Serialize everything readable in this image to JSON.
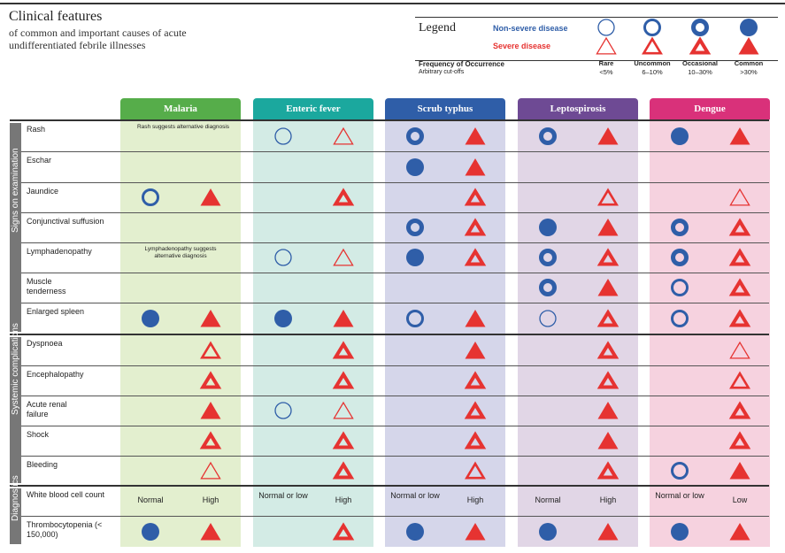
{
  "title": "Clinical features",
  "subtitle": "of common and important causes of acute undifferentiated febrile illnesses",
  "legend": {
    "title": "Legend",
    "non_severe": "Non-severe disease",
    "severe": "Severe disease",
    "freq_title": "Frequency of Occurrence",
    "freq_sub": "Arbitrary cut-offs",
    "levels": [
      {
        "name": "Rare",
        "range": "<5%"
      },
      {
        "name": "Uncommon",
        "range": "6–10%"
      },
      {
        "name": "Occasional",
        "range": "10–30%"
      },
      {
        "name": "Common",
        "range": ">30%"
      }
    ]
  },
  "colors": {
    "non_severe": "#2f5ea8",
    "severe": "#e63331"
  },
  "diseases": [
    {
      "name": "Malaria",
      "header_color": "#56ad4a",
      "band_color": "#e3efcf"
    },
    {
      "name": "Enteric fever",
      "header_color": "#1ba89e",
      "band_color": "#d3ebe5"
    },
    {
      "name": "Scrub typhus",
      "header_color": "#2f5ea8",
      "band_color": "#d5d6ea"
    },
    {
      "name": "Leptospirosis",
      "header_color": "#6e4a94",
      "band_color": "#e1d6e6"
    },
    {
      "name": "Dengue",
      "header_color": "#d9317a",
      "band_color": "#f6d2df"
    }
  ],
  "sections": [
    {
      "name": "Signs on examination"
    },
    {
      "name": "Systemic complications"
    },
    {
      "name": "Diagnostics"
    }
  ],
  "rows": [
    {
      "label": "Rash",
      "section": 0,
      "cells": [
        [
          "note",
          "Rash suggests alternative diagnosis"
        ],
        [
          1,
          1
        ],
        [
          3,
          4
        ],
        [
          3,
          4
        ],
        [
          4,
          4
        ]
      ]
    },
    {
      "label": "Eschar",
      "section": 0,
      "cells": [
        [
          0,
          0
        ],
        [
          0,
          0
        ],
        [
          4,
          4
        ],
        [
          0,
          0
        ],
        [
          0,
          0
        ]
      ]
    },
    {
      "label": "Jaundice",
      "section": 0,
      "cells": [
        [
          2,
          4
        ],
        [
          0,
          3
        ],
        [
          0,
          3
        ],
        [
          0,
          2
        ],
        [
          0,
          1
        ]
      ]
    },
    {
      "label": "Conjunctival suffusion",
      "section": 0,
      "cells": [
        [
          0,
          0
        ],
        [
          0,
          0
        ],
        [
          3,
          3
        ],
        [
          4,
          4
        ],
        [
          3,
          3
        ]
      ]
    },
    {
      "label": "Lymphadenopathy",
      "section": 0,
      "cells": [
        [
          "note",
          "Lymphadenopathy suggests alternative diagnosis"
        ],
        [
          1,
          1
        ],
        [
          4,
          3
        ],
        [
          3,
          3
        ],
        [
          3,
          3
        ]
      ]
    },
    {
      "label": "Muscle tenderness",
      "section": 0,
      "cells": [
        [
          0,
          0
        ],
        [
          0,
          0
        ],
        [
          0,
          0
        ],
        [
          3,
          4
        ],
        [
          2,
          3
        ]
      ]
    },
    {
      "label": "Enlarged spleen",
      "section": 0,
      "cells": [
        [
          4,
          4
        ],
        [
          4,
          4
        ],
        [
          2,
          4
        ],
        [
          1,
          3
        ],
        [
          2,
          3
        ]
      ]
    },
    {
      "label": "Dyspnoea",
      "section": 1,
      "cells": [
        [
          0,
          2
        ],
        [
          0,
          3
        ],
        [
          0,
          4
        ],
        [
          0,
          3
        ],
        [
          0,
          1
        ]
      ]
    },
    {
      "label": "Encephalopathy",
      "section": 1,
      "cells": [
        [
          0,
          3
        ],
        [
          0,
          3
        ],
        [
          0,
          3
        ],
        [
          0,
          3
        ],
        [
          0,
          2
        ]
      ]
    },
    {
      "label": "Acute renal failure",
      "section": 1,
      "cells": [
        [
          0,
          4
        ],
        [
          1,
          1
        ],
        [
          0,
          3
        ],
        [
          0,
          4
        ],
        [
          0,
          3
        ]
      ]
    },
    {
      "label": "Shock",
      "section": 1,
      "cells": [
        [
          0,
          3
        ],
        [
          0,
          3
        ],
        [
          0,
          3
        ],
        [
          0,
          4
        ],
        [
          0,
          3
        ]
      ]
    },
    {
      "label": "Bleeding",
      "section": 1,
      "cells": [
        [
          0,
          1
        ],
        [
          0,
          3
        ],
        [
          0,
          2
        ],
        [
          0,
          3
        ],
        [
          2,
          4
        ]
      ]
    },
    {
      "label": "White blood cell count",
      "section": 2,
      "cells": [
        [
          "Normal",
          "High"
        ],
        [
          "Normal or low",
          "High"
        ],
        [
          "Normal or low",
          "High"
        ],
        [
          "Normal",
          "High"
        ],
        [
          "Normal or low",
          "Low"
        ]
      ]
    },
    {
      "label": "Thrombocytopenia (< 150,000)",
      "section": 2,
      "cells": [
        [
          4,
          4
        ],
        [
          0,
          3
        ],
        [
          4,
          4
        ],
        [
          4,
          4
        ],
        [
          4,
          4
        ]
      ]
    }
  ]
}
